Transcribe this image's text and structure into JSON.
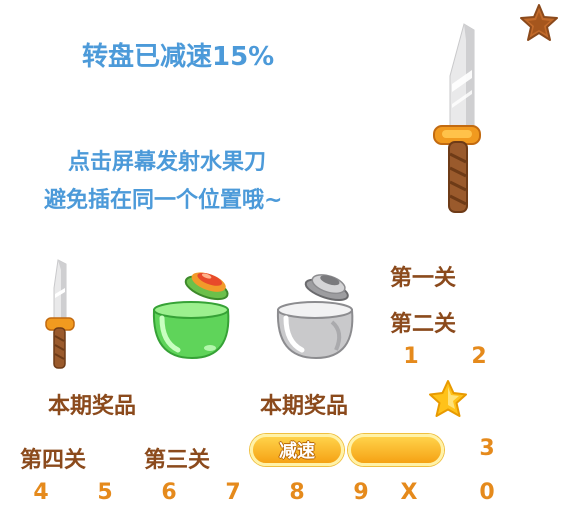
{
  "hud": {
    "speed_notice": "转盘已减速15%",
    "instructions_line1": "点击屏幕发射水果刀",
    "instructions_line2": "避免插在同一个位置哦~"
  },
  "levels": {
    "level1": "第一关",
    "level2": "第二关",
    "level3": "第三关",
    "level4": "第四关"
  },
  "prizes": {
    "label_left": "本期奖品",
    "label_right": "本期奖品"
  },
  "buttons": {
    "slow_down": "减速"
  },
  "digits": {
    "d1": "1",
    "d2": "2",
    "d3": "3",
    "d4": "4",
    "d5": "5",
    "d6": "6",
    "d7": "7",
    "d8": "8",
    "d9": "9",
    "dx": "X",
    "d0": "0"
  },
  "colors": {
    "accent_blue": "#4c9ad9",
    "text_brown": "#8b4a1c",
    "digit_orange": "#e58a1c",
    "button_yellow": "#f5a214"
  },
  "icons": {
    "top_right": "star-badge-icon",
    "large_knife": "knife-icon",
    "small_knife": "knife-icon",
    "green_pot": "fruit-pot-icon",
    "gray_pot": "silver-pot-icon",
    "star": "star-icon"
  }
}
